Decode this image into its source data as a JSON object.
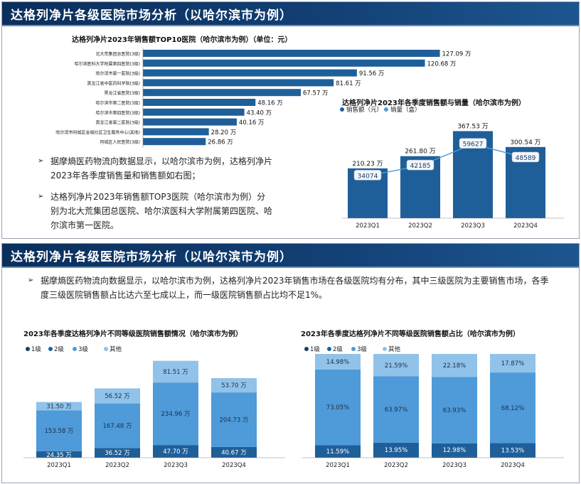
{
  "slide1": {
    "title": "达格列净片各级医院市场分析（以哈尔滨市为例）",
    "bullets": [
      "据摩熵医药物流向数据显示，以哈尔滨市为例，达格列净片2023年各季度销售量和销售额如右图；",
      "达格列净片2023年销售额TOP3医院（哈尔滨市为例）分别为北大荒集团总医院、哈尔滨医科大学附属第四医院、哈尔滨市第一医院。"
    ]
  },
  "slide2": {
    "title": "达格列净片各级医院市场分析（以哈尔滨市为例）",
    "bullet": "据摩熵医药物流向数据显示，以哈尔滨市为例，达格列净片2023年销售市场在各级医院均有分布，其中三级医院为主要销售市场，各季度三级医院销售额占比达六至七成以上，而一级医院销售额占比均不足1%。"
  },
  "chart_data": [
    {
      "type": "bar",
      "orientation": "horizontal",
      "title": "达格列净片2023年销售额TOP10医院（哈尔滨市为例）（单位：元）",
      "categories": [
        "北大荒集团总医院(3级)",
        "哈尔滨医科大学附属第四医院(3级)",
        "哈尔滨市第一医院(3级)",
        "黑龙江省中医药科学院(3级)",
        "黑龙江省医院(3级)",
        "哈尔滨市第二医院(3级)",
        "哈尔滨市第四医院(3级)",
        "黑龙江省第二医院(3级)",
        "哈尔滨市阿城区金城社区卫生服务中心(其他)",
        "阿城区人民医院(3级)"
      ],
      "values": [
        127.09,
        120.68,
        91.56,
        81.61,
        67.57,
        48.16,
        43.4,
        40.16,
        28.2,
        26.86
      ],
      "labels": [
        "127.09 万",
        "120.68 万",
        "91.56 万",
        "81.61 万",
        "67.57 万",
        "48.16 万",
        "43.40 万",
        "40.16 万",
        "28.20 万",
        "26.86 万"
      ],
      "xlim": [
        0,
        140
      ],
      "color": "#1f5f99"
    },
    {
      "type": "bar",
      "title": "达格列净片2023年各季度销售额与销量（哈尔滨市为例）",
      "categories": [
        "2023Q1",
        "2023Q2",
        "2023Q3",
        "2023Q4"
      ],
      "legend": {
        "position": "top",
        "entries": [
          "销售额（元）",
          "销量（盒）"
        ]
      },
      "series": [
        {
          "name": "销售额（元）",
          "type": "bar",
          "values": [
            210.23,
            261.8,
            367.53,
            300.54
          ],
          "labels": [
            "210.23 万",
            "261.80 万",
            "367.53 万",
            "300.54 万"
          ],
          "color": "#1f5f99"
        },
        {
          "name": "销量（盒）",
          "type": "line",
          "values": [
            34074,
            42185,
            59627,
            48589
          ],
          "labels": [
            "34074",
            "42185",
            "59627",
            "48589"
          ],
          "color": "#4f9ad8"
        }
      ],
      "ylim_bar": [
        0,
        420
      ],
      "ylim_line": [
        0,
        80000
      ]
    },
    {
      "type": "bar",
      "stacked": true,
      "title": "2023年各季度达格列净片不同等级医院销售额情况（哈尔滨市为例）",
      "categories": [
        "2023Q1",
        "2023Q2",
        "2023Q3",
        "2023Q4"
      ],
      "legend": {
        "position": "top-left",
        "entries": [
          "1级",
          "2级",
          "3级",
          "其他"
        ]
      },
      "series": [
        {
          "name": "1级",
          "values": [
            0,
            0,
            0,
            0
          ],
          "color": "#163f6b"
        },
        {
          "name": "2级",
          "values": [
            24.35,
            36.52,
            47.7,
            40.67
          ],
          "labels": [
            "24.35 万",
            "36.52 万",
            "47.70 万",
            "40.67 万"
          ],
          "color": "#1f5f99"
        },
        {
          "name": "3级",
          "values": [
            153.58,
            167.48,
            234.96,
            204.73
          ],
          "labels": [
            "153.58 万",
            "167.48 万",
            "234.96 万",
            "204.73 万"
          ],
          "color": "#4f9ad8"
        },
        {
          "name": "其他",
          "values": [
            31.5,
            56.52,
            81.51,
            53.7
          ],
          "labels": [
            "31.50 万",
            "56.52 万",
            "81.51 万",
            "53.70 万"
          ],
          "color": "#90c2ea"
        }
      ],
      "ylim": [
        0,
        390
      ]
    },
    {
      "type": "bar",
      "stacked": true,
      "percent": true,
      "title": "2023年各季度达格列净片不同等级医院销售额占比（哈尔滨市为例）",
      "categories": [
        "2023Q1",
        "2023Q2",
        "2023Q3",
        "2023Q4"
      ],
      "legend": {
        "position": "top-left",
        "entries": [
          "1级",
          "2级",
          "3级",
          "其他"
        ]
      },
      "series": [
        {
          "name": "1级",
          "values": [
            0.38,
            0.49,
            0.91,
            0.48
          ],
          "color": "#163f6b"
        },
        {
          "name": "2级",
          "values": [
            11.59,
            13.95,
            12.98,
            13.53
          ],
          "labels": [
            "11.59%",
            "13.95%",
            "12.98%",
            "13.53%"
          ],
          "color": "#1f5f99"
        },
        {
          "name": "3级",
          "values": [
            73.05,
            63.97,
            63.93,
            68.12
          ],
          "labels": [
            "73.05%",
            "63.97%",
            "63.93%",
            "68.12%"
          ],
          "color": "#4f9ad8"
        },
        {
          "name": "其他",
          "values": [
            14.98,
            21.59,
            22.18,
            17.87
          ],
          "labels": [
            "14.98%",
            "21.59%",
            "22.18%",
            "17.87%"
          ],
          "color": "#90c2ea"
        }
      ],
      "ylim": [
        0,
        100
      ]
    }
  ]
}
